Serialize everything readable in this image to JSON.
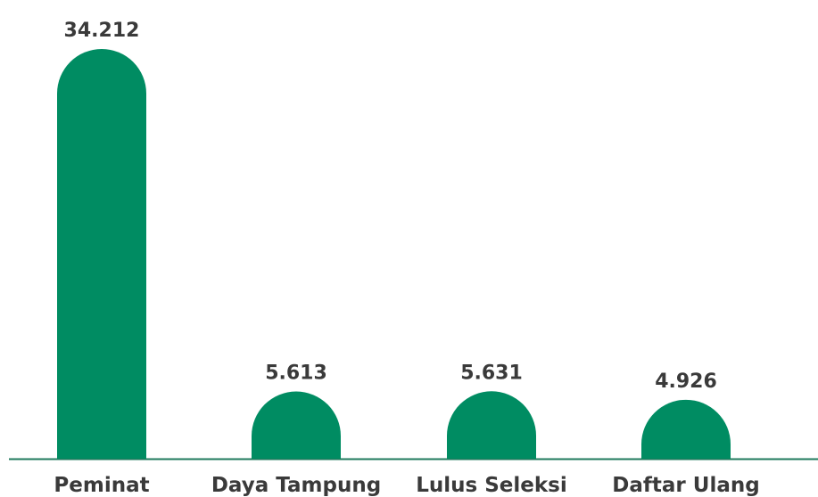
{
  "chart_data": {
    "type": "bar",
    "categories": [
      "Peminat",
      "Daya Tampung",
      "Lulus Seleksi",
      "Daftar Ulang"
    ],
    "values": [
      34212,
      5613,
      5631,
      4926
    ],
    "value_labels": [
      "34.212",
      "5.613",
      "5.631",
      "4.926"
    ],
    "color": "#008c62"
  }
}
